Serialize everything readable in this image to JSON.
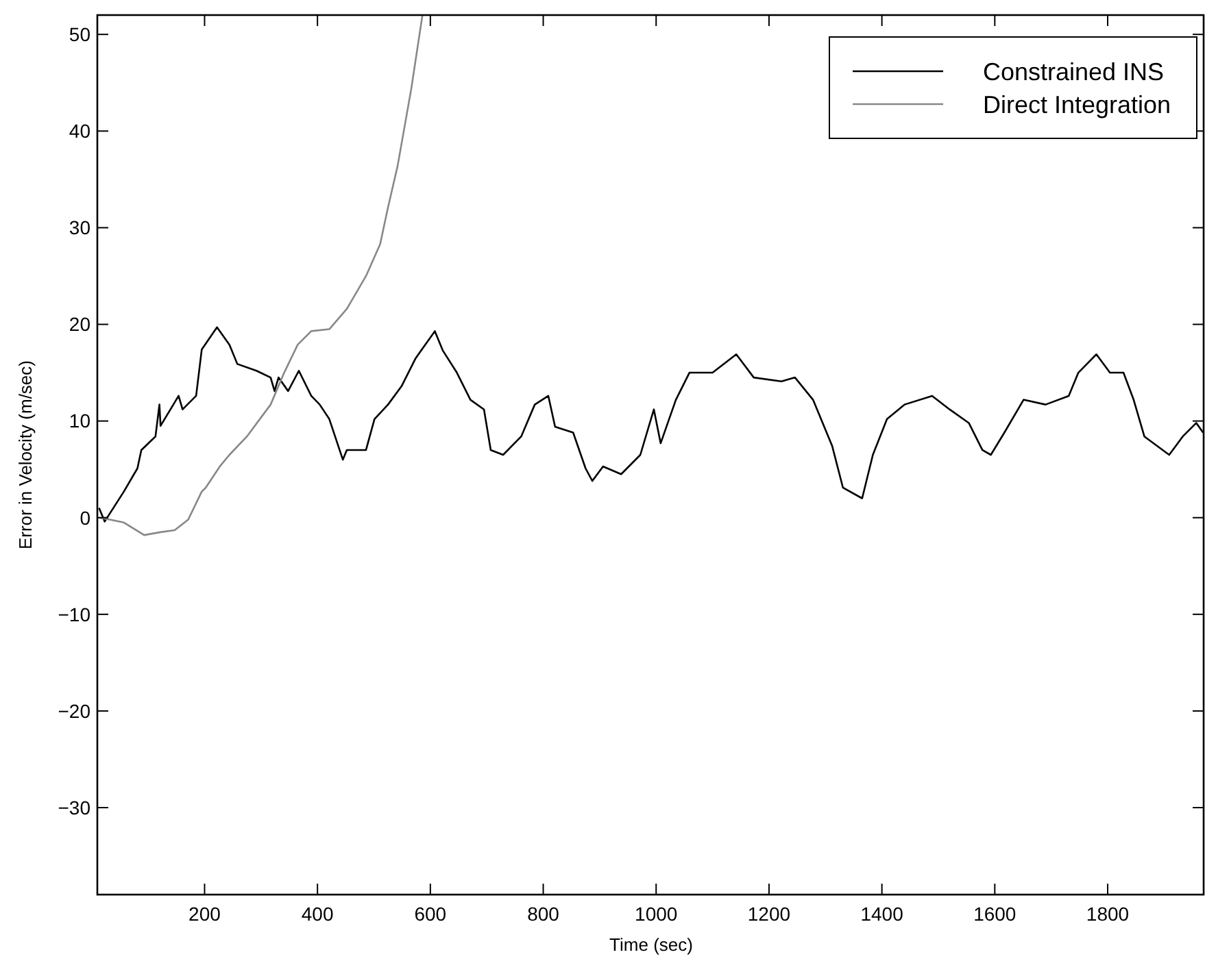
{
  "chart_data": {
    "type": "line",
    "xlabel": "Time (sec)",
    "ylabel": "Error in Velocity (m/sec)",
    "xlim": [
      10,
      1970
    ],
    "ylim": [
      -39,
      52
    ],
    "xticks": [
      200,
      400,
      600,
      800,
      1000,
      1200,
      1400,
      1600,
      1800
    ],
    "yticks": [
      -30,
      -20,
      -10,
      0,
      10,
      20,
      30,
      40,
      50
    ],
    "grid": false,
    "legend": "top right",
    "line_style": "solid",
    "series": [
      {
        "name": "Constrained INS",
        "color": "#000000",
        "x": [
          13,
          23,
          57,
          81,
          88,
          113,
          120,
          122,
          154,
          161,
          185,
          195,
          222,
          244,
          258,
          292,
          317,
          324,
          331,
          348,
          367,
          389,
          404,
          421,
          445,
          452,
          486,
          501,
          525,
          549,
          574,
          608,
          622,
          647,
          671,
          695,
          707,
          729,
          761,
          785,
          809,
          821,
          853,
          875,
          887,
          906,
          938,
          972,
          996,
          1008,
          1035,
          1059,
          1100,
          1142,
          1173,
          1222,
          1246,
          1278,
          1312,
          1331,
          1365,
          1384,
          1409,
          1440,
          1489,
          1520,
          1554,
          1578,
          1593,
          1617,
          1651,
          1690,
          1731,
          1748,
          1780,
          1804,
          1828,
          1846,
          1865,
          1909,
          1933,
          1957,
          1969
        ],
        "values": [
          1,
          -0.4,
          2.7,
          5.1,
          7,
          8.4,
          11.7,
          9.5,
          12.6,
          11.2,
          12.6,
          17.4,
          19.7,
          17.9,
          15.9,
          15.2,
          14.5,
          13.1,
          14.5,
          13.1,
          15.2,
          12.6,
          11.7,
          10.2,
          6,
          7,
          7,
          10.2,
          11.7,
          13.6,
          16.5,
          19.3,
          17.3,
          15,
          12.2,
          11.2,
          7,
          6.5,
          8.4,
          11.7,
          12.6,
          9.4,
          8.8,
          5.1,
          3.8,
          5.3,
          4.5,
          6.5,
          11.2,
          7.7,
          12.2,
          15,
          15,
          16.9,
          14.5,
          14.1,
          14.5,
          12.2,
          7.4,
          3.1,
          2,
          6.5,
          10.2,
          11.7,
          12.6,
          11.2,
          9.8,
          7,
          6.5,
          8.8,
          12.2,
          11.7,
          12.6,
          15,
          16.9,
          15,
          15,
          12.2,
          8.4,
          6.5,
          8.4,
          9.8,
          8.8
        ]
      },
      {
        "name": "Direct Integration",
        "color": "#888888",
        "x": [
          13,
          32,
          57,
          93,
          122,
          147,
          171,
          195,
          202,
          227,
          244,
          275,
          317,
          341,
          365,
          389,
          421,
          452,
          486,
          511,
          525,
          542,
          566,
          586
        ],
        "values": [
          0,
          -0.2,
          -0.5,
          -1.8,
          -1.5,
          -1.3,
          -0.2,
          2.7,
          3.1,
          5.3,
          6.5,
          8.4,
          11.7,
          15,
          17.9,
          19.3,
          19.5,
          21.6,
          25,
          28.3,
          32.1,
          36.4,
          44.3,
          52
        ]
      }
    ]
  }
}
